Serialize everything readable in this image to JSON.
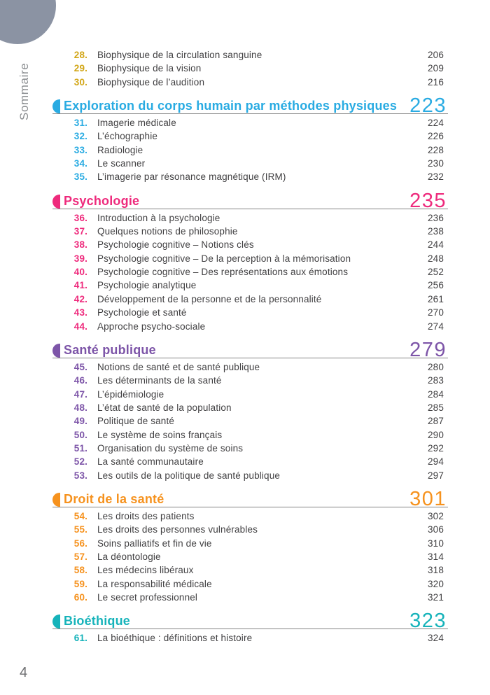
{
  "sidebar": {
    "label": "Sommaire",
    "color": "#8a8d90"
  },
  "decor": {
    "circle_color": "#8b93a3"
  },
  "footer": {
    "page_number": "4",
    "color": "#6d6e71"
  },
  "text_color": "#414042",
  "rule_color": "#848484",
  "toc": {
    "sections": [
      {
        "title": "",
        "page": "",
        "color": "#d2a617",
        "items": [
          {
            "num": "28.",
            "title": "Biophysique de la circulation sanguine",
            "page": "206"
          },
          {
            "num": "29.",
            "title": "Biophysique de la vision",
            "page": "209"
          },
          {
            "num": "30.",
            "title": "Biophysique de l’audition",
            "page": "216"
          }
        ]
      },
      {
        "title": "Exploration du corps humain par méthodes physiques",
        "page": "223",
        "color": "#29abe2",
        "items": [
          {
            "num": "31.",
            "title": "Imagerie médicale",
            "page": "224"
          },
          {
            "num": "32.",
            "title": "L’échographie",
            "page": "226"
          },
          {
            "num": "33.",
            "title": "Radiologie",
            "page": "228"
          },
          {
            "num": "34.",
            "title": "Le scanner",
            "page": "230"
          },
          {
            "num": "35.",
            "title": "L’imagerie par résonance magnétique (IRM)",
            "page": "232"
          }
        ]
      },
      {
        "title": "Psychologie",
        "page": "235",
        "color": "#ee2a7c",
        "items": [
          {
            "num": "36.",
            "title": "Introduction à la psychologie",
            "page": "236"
          },
          {
            "num": "37.",
            "title": "Quelques notions de philosophie",
            "page": "238"
          },
          {
            "num": "38.",
            "title": "Psychologie cognitive – Notions clés",
            "page": "244"
          },
          {
            "num": "39.",
            "title": "Psychologie cognitive – De la perception à la mémorisation",
            "page": "248"
          },
          {
            "num": "40.",
            "title": "Psychologie cognitive – Des représentations aux émotions",
            "page": "252"
          },
          {
            "num": "41.",
            "title": "Psychologie analytique",
            "page": "256"
          },
          {
            "num": "42.",
            "title": "Développement de la personne et de la personnalité",
            "page": "261"
          },
          {
            "num": "43.",
            "title": "Psychologie et santé",
            "page": "270"
          },
          {
            "num": "44.",
            "title": "Approche psycho-sociale",
            "page": "274"
          }
        ]
      },
      {
        "title": "Santé publique",
        "page": "279",
        "color": "#7d55a8",
        "items": [
          {
            "num": "45.",
            "title": "Notions de santé et de santé publique",
            "page": "280"
          },
          {
            "num": "46.",
            "title": "Les déterminants de la santé",
            "page": "283"
          },
          {
            "num": "47.",
            "title": "L’épidémiologie",
            "page": "284"
          },
          {
            "num": "48.",
            "title": "L’état de santé de la population",
            "page": "285"
          },
          {
            "num": "49.",
            "title": "Politique de santé",
            "page": "287"
          },
          {
            "num": "50.",
            "title": "Le système de soins français",
            "page": "290"
          },
          {
            "num": "51.",
            "title": "Organisation du système de soins",
            "page": "292"
          },
          {
            "num": "52.",
            "title": "La santé communautaire",
            "page": "294"
          },
          {
            "num": "53.",
            "title": "Les outils de la politique de santé publique",
            "page": "297"
          }
        ]
      },
      {
        "title": "Droit de la santé",
        "page": "301",
        "color": "#f6921e",
        "items": [
          {
            "num": "54.",
            "title": "Les droits des patients",
            "page": "302"
          },
          {
            "num": "55.",
            "title": "Les droits des personnes vulnérables",
            "page": "306"
          },
          {
            "num": "56.",
            "title": "Soins palliatifs et fin de vie",
            "page": "310"
          },
          {
            "num": "57.",
            "title": "La déontologie",
            "page": "314"
          },
          {
            "num": "58.",
            "title": "Les médecins libéraux",
            "page": "318"
          },
          {
            "num": "59.",
            "title": "La responsabilité médicale",
            "page": "320"
          },
          {
            "num": "60.",
            "title": "Le secret professionnel",
            "page": "321"
          }
        ]
      },
      {
        "title": "Bioéthique",
        "page": "323",
        "color": "#16b3ba",
        "items": [
          {
            "num": "61.",
            "title": "La bioéthique : définitions et histoire",
            "page": "324"
          }
        ]
      }
    ]
  }
}
